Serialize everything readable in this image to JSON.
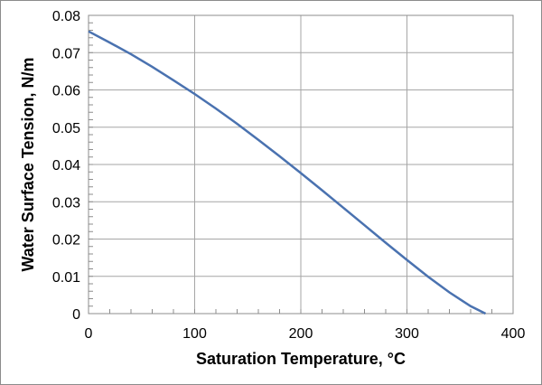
{
  "chart_data": {
    "type": "line",
    "title": "",
    "xlabel": "Saturation Temperature, °C",
    "ylabel": "Water Surface Tension, N/m",
    "xlim": [
      0,
      400
    ],
    "ylim": [
      0,
      0.08
    ],
    "xticks": [
      "0",
      "100",
      "200",
      "300",
      "400"
    ],
    "yticks": [
      "0",
      "0.01",
      "0.02",
      "0.03",
      "0.04",
      "0.05",
      "0.06",
      "0.07",
      "0.08"
    ],
    "grid": true,
    "legend": "none",
    "line_color": "#4a72b0",
    "series": [
      {
        "x": [
          0,
          20,
          40,
          60,
          80,
          100,
          120,
          140,
          160,
          180,
          200,
          220,
          240,
          260,
          280,
          300,
          320,
          340,
          360,
          374
        ],
        "y": [
          0.0757,
          0.0727,
          0.0696,
          0.0662,
          0.0626,
          0.0589,
          0.055,
          0.0509,
          0.0466,
          0.0422,
          0.0377,
          0.0331,
          0.0284,
          0.0237,
          0.019,
          0.0144,
          0.0099,
          0.0057,
          0.002,
          0.0
        ]
      }
    ]
  }
}
